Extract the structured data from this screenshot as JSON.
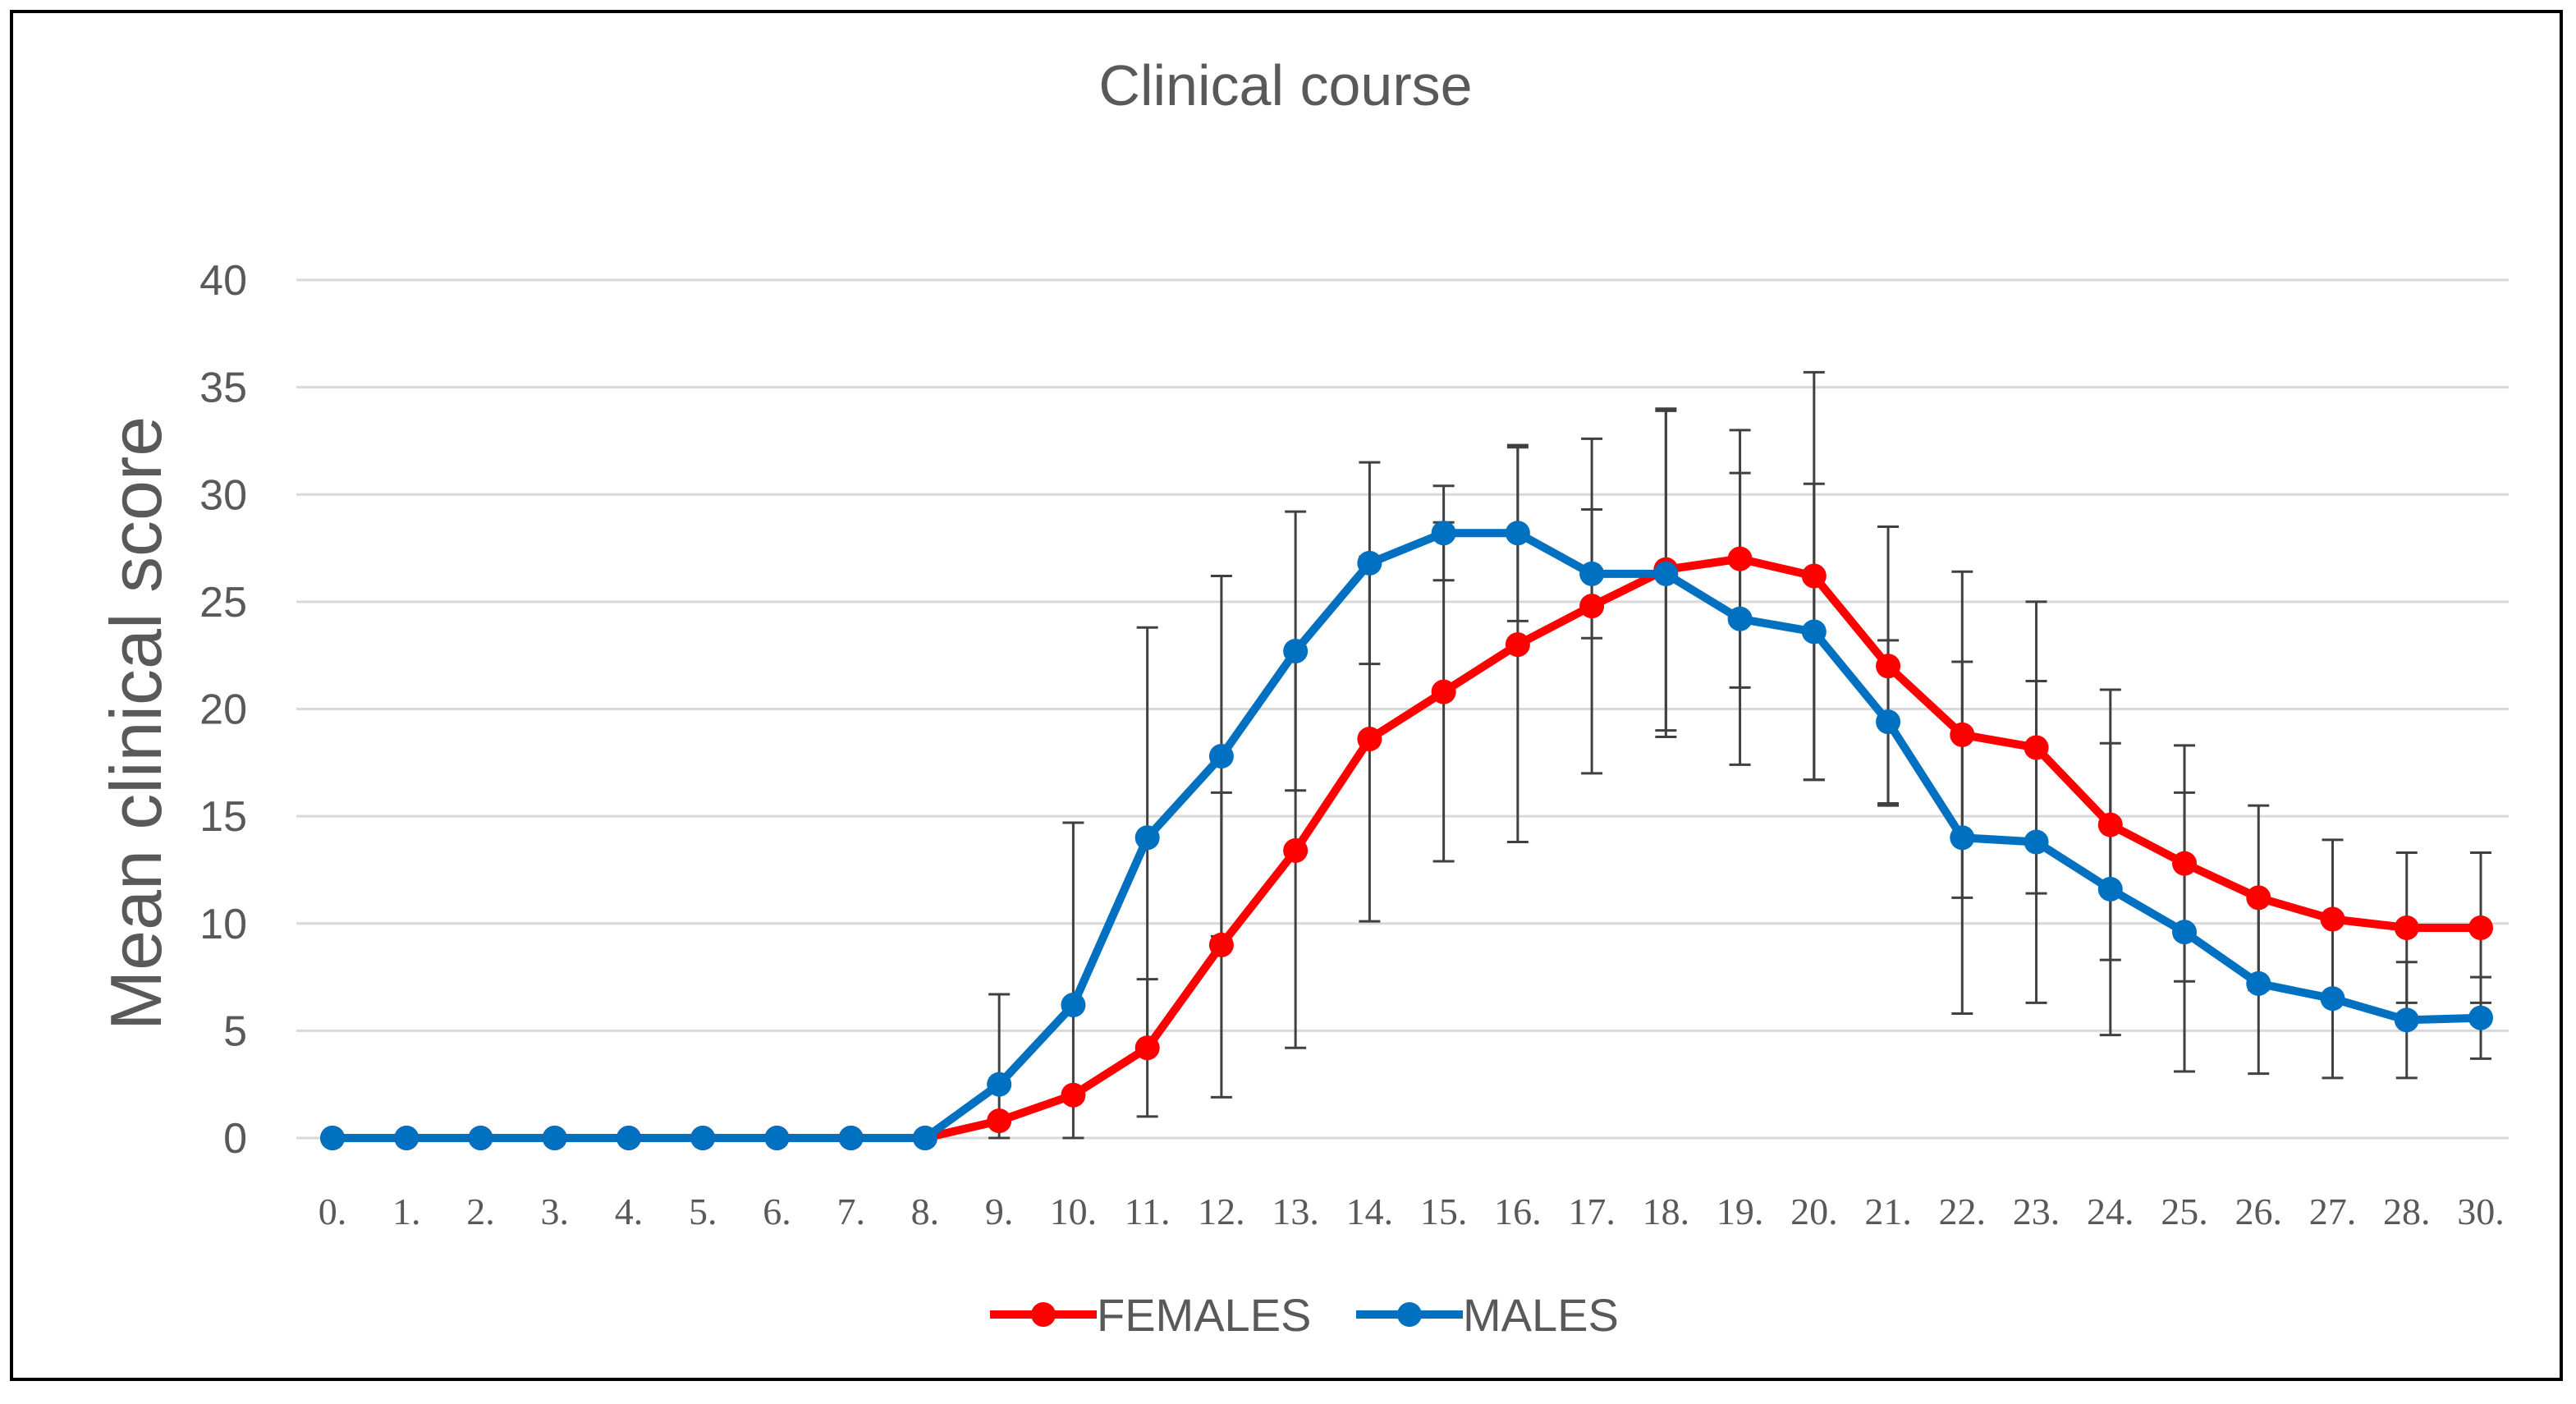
{
  "chart_data": {
    "type": "line",
    "title": "Clinical course",
    "xlabel": "",
    "ylabel": "Mean clinical score",
    "ylim": [
      0,
      40
    ],
    "yticks": [
      "0",
      "5",
      "10",
      "15",
      "20",
      "25",
      "30",
      "35",
      "40"
    ],
    "categories": [
      "0.",
      "1.",
      "2.",
      "3.",
      "4.",
      "5.",
      "6.",
      "7.",
      "8.",
      "9.",
      "10.",
      "11.",
      "12.",
      "13.",
      "14.",
      "15.",
      "16.",
      "17.",
      "18.",
      "19.",
      "20.",
      "21.",
      "22.",
      "23.",
      "24.",
      "25.",
      "26.",
      "27.",
      "28.",
      "30."
    ],
    "grid": "horizontal",
    "legend_position": "bottom",
    "series": [
      {
        "name": "FEMALES",
        "color": "#ff0000",
        "values": [
          0,
          0,
          0,
          0,
          0,
          0,
          0,
          0,
          0,
          0.8,
          2.0,
          4.2,
          9.0,
          13.4,
          18.6,
          20.8,
          23.0,
          24.8,
          26.5,
          27.0,
          26.2,
          22.0,
          18.8,
          18.2,
          14.6,
          12.8,
          11.2,
          10.2,
          9.8,
          9.8
        ],
        "error": [
          0,
          0,
          0,
          0,
          0,
          0,
          0,
          0,
          0,
          0,
          0,
          3.2,
          7.1,
          9.2,
          8.5,
          7.9,
          9.2,
          7.8,
          7.5,
          6.0,
          9.5,
          6.5,
          7.6,
          6.8,
          6.3,
          5.5,
          4.3,
          3.7,
          3.5,
          3.5
        ]
      },
      {
        "name": "MALES",
        "color": "#0070c0",
        "values": [
          0,
          0,
          0,
          0,
          0,
          0,
          0,
          0,
          0,
          2.5,
          6.2,
          14.0,
          17.8,
          22.7,
          26.8,
          28.2,
          28.2,
          26.3,
          26.3,
          24.2,
          23.6,
          19.4,
          14.0,
          13.8,
          11.6,
          9.6,
          7.2,
          6.5,
          5.5,
          5.6
        ],
        "error": [
          0,
          0,
          0,
          0,
          0,
          0,
          0,
          0,
          0,
          4.2,
          8.5,
          9.8,
          8.4,
          6.5,
          4.7,
          2.2,
          4.1,
          3.0,
          7.6,
          6.8,
          6.9,
          3.8,
          8.2,
          7.5,
          6.8,
          6.5,
          4.2,
          3.7,
          2.7,
          1.9
        ]
      }
    ]
  }
}
